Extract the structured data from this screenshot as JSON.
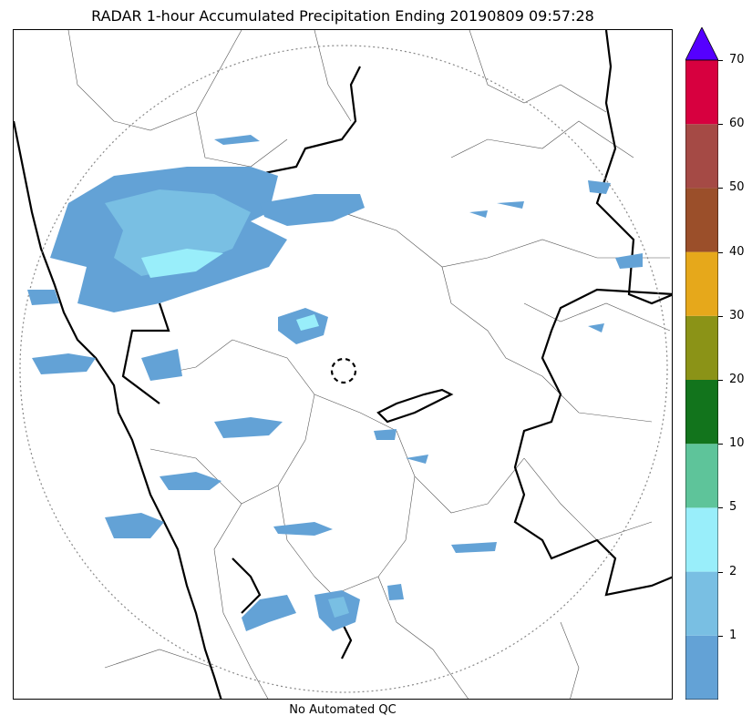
{
  "title": "RADAR 1-hour Accumulated Precipitation Ending 20190809 09:57:28",
  "footer": "No Automated QC",
  "colorbar": {
    "labels": [
      "1",
      "2",
      "5",
      "10",
      "20",
      "30",
      "40",
      "50",
      "60",
      "70"
    ],
    "colors": [
      "#63a2d6",
      "#79bfe3",
      "#99eefa",
      "#5ec49a",
      "#12741c",
      "#8b9317",
      "#e6a81b",
      "#9b4f2a",
      "#a54a45",
      "#d7003f"
    ],
    "extend_color": "#5500ff"
  },
  "map": {
    "coastline_color": "#000000",
    "border_color": "#000000",
    "district_color": "#555555",
    "range_ring_color": "#888888",
    "rain_color_light": "#63a2d6",
    "rain_color_mid": "#79bfe3",
    "rain_color_high": "#99eefa"
  }
}
